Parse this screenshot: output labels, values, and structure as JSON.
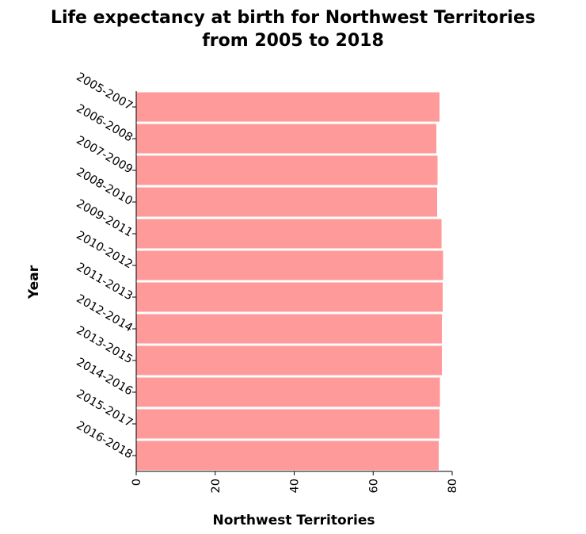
{
  "chart_data": {
    "type": "bar",
    "orientation": "horizontal",
    "title": [
      "Life expectancy at birth for Northwest Territories",
      "from 2005 to 2018"
    ],
    "xlabel": "Northwest Territories",
    "ylabel": "Year",
    "categories": [
      "2005-2007",
      "2006-2008",
      "2007-2009",
      "2008-2010",
      "2009-2011",
      "2010-2012",
      "2011-2013",
      "2012-2014",
      "2013-2015",
      "2014-2016",
      "2015-2017",
      "2016-2018"
    ],
    "values": [
      76.8,
      76.0,
      76.3,
      76.2,
      77.3,
      77.7,
      77.6,
      77.4,
      77.4,
      76.9,
      76.8,
      76.6
    ],
    "xlim": [
      0,
      80
    ],
    "xticks": [
      0,
      20,
      40,
      60,
      80
    ],
    "grid": false,
    "legend": "none",
    "bar_color": "#ff9a9a",
    "axis_color": "#000000"
  }
}
